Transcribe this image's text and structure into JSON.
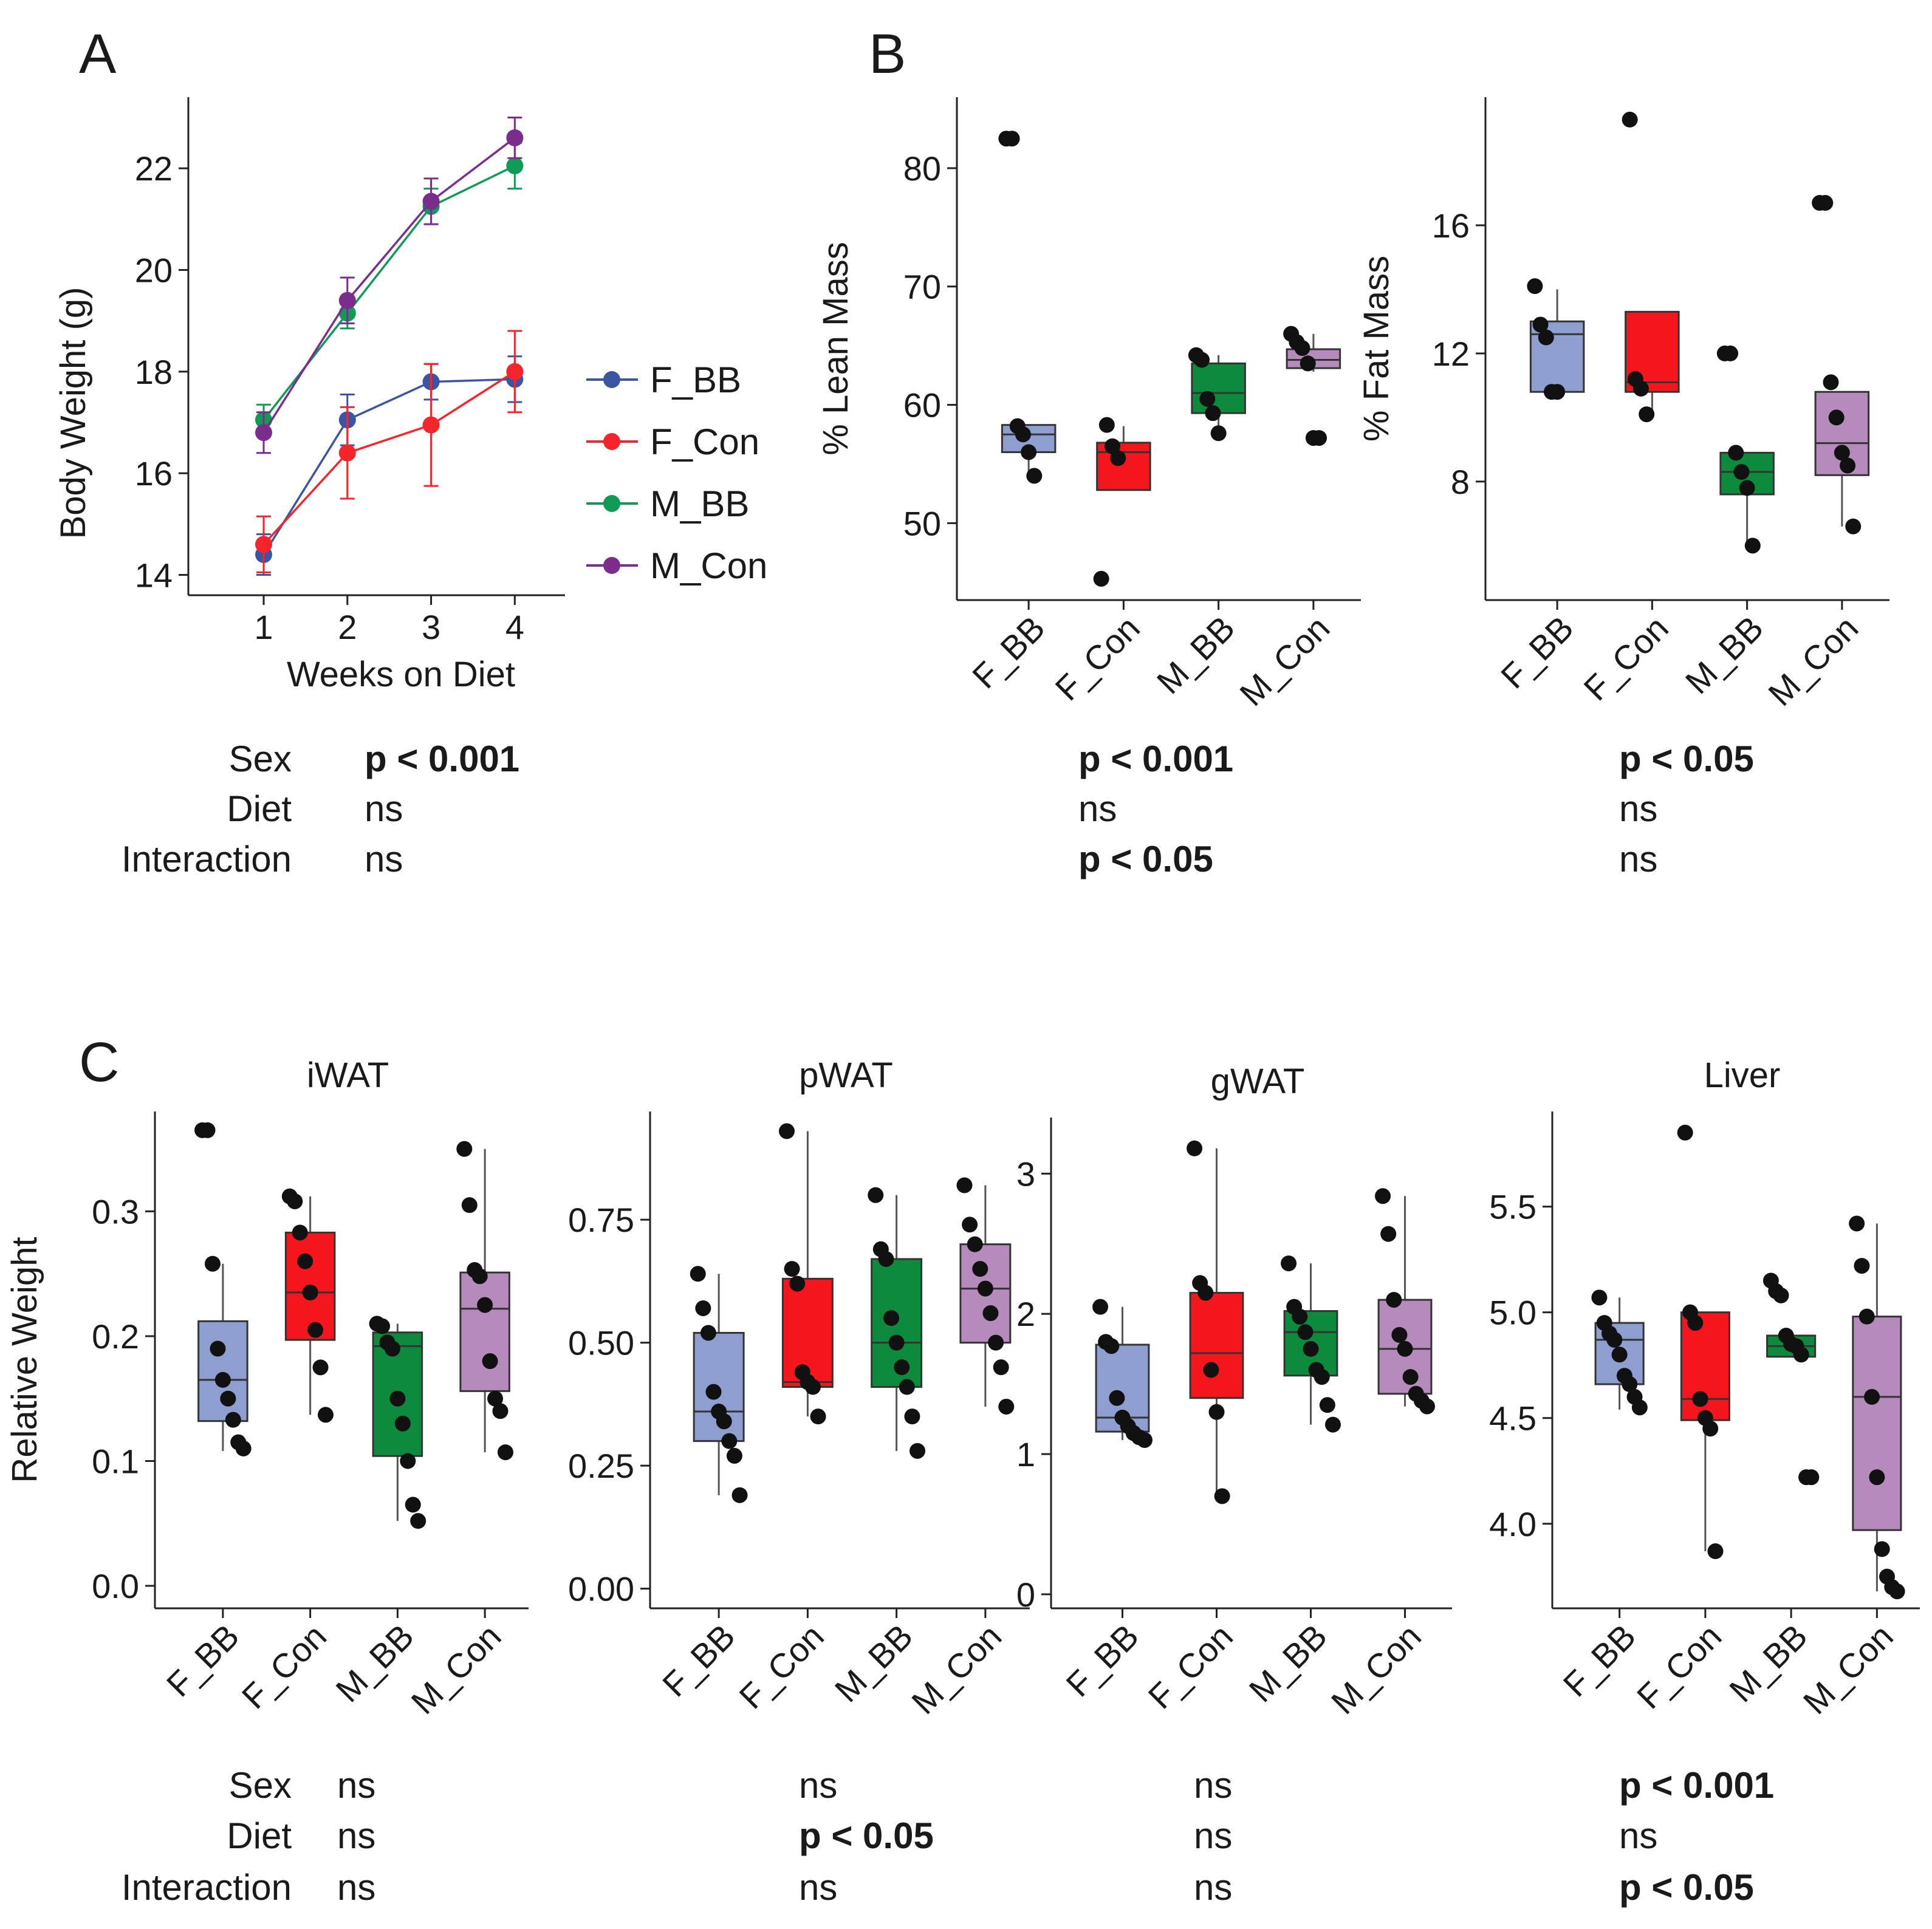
{
  "colors": {
    "F_BB": "#8e9fcf",
    "F_Con": "#f4161c",
    "M_BB": "#0d8a3c",
    "M_Con": "#b58bbb"
  },
  "line_colors": {
    "F_BB": "#3a55a4",
    "F_Con": "#f4262c",
    "M_BB": "#0f9a55",
    "M_Con": "#7b2d8e"
  },
  "stat_labels": {
    "sex": "Sex",
    "diet": "Diet",
    "interaction": "Interaction"
  },
  "chart_data": [
    {
      "id": "A",
      "panel_label": "A",
      "type": "line",
      "xlabel": "Weeks on Diet",
      "ylabel": "Body Weight (g)",
      "x": [
        1,
        2,
        3,
        4
      ],
      "xlim": [
        0.1,
        4.6
      ],
      "ylim": [
        13.6,
        23.4
      ],
      "xticks": [
        1,
        2,
        3,
        4
      ],
      "yticks": [
        14,
        16,
        18,
        20,
        22
      ],
      "series": [
        {
          "name": "F_BB",
          "values": [
            14.4,
            17.05,
            17.8,
            17.85
          ],
          "errors": [
            0.4,
            0.5,
            0.35,
            0.45
          ]
        },
        {
          "name": "F_Con",
          "values": [
            14.6,
            16.4,
            16.95,
            18.0
          ],
          "errors": [
            0.55,
            0.9,
            1.2,
            0.8
          ]
        },
        {
          "name": "M_BB",
          "values": [
            17.05,
            19.15,
            21.25,
            22.05
          ],
          "errors": [
            0.3,
            0.3,
            0.35,
            0.45
          ]
        },
        {
          "name": "M_Con",
          "values": [
            16.8,
            19.4,
            21.35,
            22.6
          ],
          "errors": [
            0.4,
            0.45,
            0.45,
            0.4
          ]
        }
      ],
      "legend": [
        "F_BB",
        "F_Con",
        "M_BB",
        "M_Con"
      ],
      "stats": {
        "sex": "p < 0.001",
        "diet": "ns",
        "interaction": "ns"
      },
      "stats_bold": {
        "sex": true,
        "diet": false,
        "interaction": false
      }
    },
    {
      "id": "B1",
      "panel_label": "B",
      "type": "box",
      "title": "",
      "ylabel": "% Lean Mass",
      "categories": [
        "F_BB",
        "F_Con",
        "M_BB",
        "M_Con"
      ],
      "ylim": [
        43.5,
        86
      ],
      "yticks": [
        50,
        60,
        70,
        80
      ],
      "boxes": [
        {
          "q1": 56.0,
          "median": 57.5,
          "q3": 58.3,
          "lo": 54.0,
          "hi": 58.3
        },
        {
          "q1": 52.8,
          "median": 56.0,
          "q3": 56.8,
          "lo": 52.8,
          "hi": 58.2
        },
        {
          "q1": 59.3,
          "median": 61.0,
          "q3": 63.5,
          "lo": 57.6,
          "hi": 64.2
        },
        {
          "q1": 63.1,
          "median": 63.8,
          "q3": 64.7,
          "lo": 62.8,
          "hi": 66.0
        }
      ],
      "points": [
        [
          82.5,
          82.5,
          58.2,
          57.5,
          56.0,
          54.0
        ],
        [
          45.3,
          58.3,
          56.5,
          55.5
        ],
        [
          64.2,
          63.8,
          60.5,
          59.3,
          57.6
        ],
        [
          66.0,
          65.3,
          64.8,
          63.5,
          57.2,
          57.2
        ]
      ],
      "stats": {
        "sex": "p < 0.001",
        "diet": "ns",
        "interaction": "p < 0.05"
      },
      "stats_bold": {
        "sex": true,
        "diet": false,
        "interaction": true
      }
    },
    {
      "id": "B2",
      "type": "box",
      "title": "",
      "ylabel": "% Fat Mass",
      "categories": [
        "F_BB",
        "F_Con",
        "M_BB",
        "M_Con"
      ],
      "ylim": [
        4.3,
        20.0
      ],
      "yticks": [
        8,
        12,
        16
      ],
      "boxes": [
        {
          "q1": 10.8,
          "median": 12.6,
          "q3": 13.0,
          "lo": 10.8,
          "hi": 14.0
        },
        {
          "q1": 10.8,
          "median": 11.1,
          "q3": 13.3,
          "lo": 10.1,
          "hi": 13.3
        },
        {
          "q1": 7.6,
          "median": 8.3,
          "q3": 8.9,
          "lo": 6.0,
          "hi": 8.9
        },
        {
          "q1": 8.2,
          "median": 9.2,
          "q3": 10.8,
          "lo": 6.6,
          "hi": 10.8
        }
      ],
      "points": [
        [
          14.1,
          12.9,
          12.5,
          10.8,
          10.8
        ],
        [
          19.3,
          11.2,
          10.9,
          10.1
        ],
        [
          12.0,
          12.0,
          8.9,
          8.3,
          7.8,
          6.0
        ],
        [
          16.7,
          16.7,
          11.1,
          10.0,
          8.9,
          8.5,
          6.6
        ]
      ],
      "stats": {
        "sex": "p < 0.05",
        "diet": "ns",
        "interaction": "ns"
      },
      "stats_bold": {
        "sex": true,
        "diet": false,
        "interaction": false
      }
    },
    {
      "id": "C1",
      "panel_label": "C",
      "type": "box",
      "title": "iWAT",
      "ylabel": "Relative Weight",
      "categories": [
        "F_BB",
        "F_Con",
        "M_BB",
        "M_Con"
      ],
      "ylim": [
        -0.018,
        0.38
      ],
      "yticks": [
        "0.0",
        "0.1",
        "0.2",
        "0.3"
      ],
      "boxes": [
        {
          "q1": 0.132,
          "median": 0.165,
          "q3": 0.212,
          "lo": 0.108,
          "hi": 0.258
        },
        {
          "q1": 0.197,
          "median": 0.235,
          "q3": 0.283,
          "lo": 0.137,
          "hi": 0.312
        },
        {
          "q1": 0.104,
          "median": 0.192,
          "q3": 0.203,
          "lo": 0.052,
          "hi": 0.21
        },
        {
          "q1": 0.156,
          "median": 0.222,
          "q3": 0.251,
          "lo": 0.107,
          "hi": 0.35
        }
      ],
      "points": [
        [
          0.365,
          0.365,
          0.258,
          0.19,
          0.165,
          0.15,
          0.133,
          0.115,
          0.11
        ],
        [
          0.312,
          0.308,
          0.283,
          0.26,
          0.235,
          0.205,
          0.175,
          0.137
        ],
        [
          0.21,
          0.208,
          0.195,
          0.19,
          0.15,
          0.13,
          0.1,
          0.065,
          0.052
        ],
        [
          0.35,
          0.305,
          0.253,
          0.248,
          0.225,
          0.18,
          0.15,
          0.14,
          0.107
        ]
      ],
      "stats": {
        "sex": "ns",
        "diet": "ns",
        "interaction": "ns"
      },
      "stats_bold": {
        "sex": false,
        "diet": false,
        "interaction": false
      }
    },
    {
      "id": "C2",
      "type": "box",
      "title": "pWAT",
      "ylabel": "",
      "categories": [
        "F_BB",
        "F_Con",
        "M_BB",
        "M_Con"
      ],
      "ylim": [
        -0.04,
        0.97
      ],
      "yticks": [
        "0.00",
        "0.25",
        "0.50",
        "0.75"
      ],
      "boxes": [
        {
          "q1": 0.3,
          "median": 0.36,
          "q3": 0.52,
          "lo": 0.19,
          "hi": 0.64
        },
        {
          "q1": 0.41,
          "median": 0.42,
          "q3": 0.63,
          "lo": 0.35,
          "hi": 0.93
        },
        {
          "q1": 0.41,
          "median": 0.5,
          "q3": 0.67,
          "lo": 0.28,
          "hi": 0.8
        },
        {
          "q1": 0.5,
          "median": 0.61,
          "q3": 0.7,
          "lo": 0.37,
          "hi": 0.82
        }
      ],
      "points": [
        [
          0.64,
          0.57,
          0.52,
          0.4,
          0.36,
          0.34,
          0.3,
          0.27,
          0.19
        ],
        [
          0.93,
          0.65,
          0.62,
          0.44,
          0.42,
          0.41,
          0.35
        ],
        [
          0.8,
          0.69,
          0.67,
          0.55,
          0.5,
          0.45,
          0.41,
          0.35,
          0.28
        ],
        [
          0.82,
          0.74,
          0.7,
          0.65,
          0.61,
          0.56,
          0.5,
          0.45,
          0.37
        ]
      ],
      "stats": {
        "sex": "ns",
        "diet": "p < 0.05",
        "interaction": "ns"
      },
      "stats_bold": {
        "sex": false,
        "diet": true,
        "interaction": false
      }
    },
    {
      "id": "C3",
      "type": "box",
      "title": "gWAT",
      "ylabel": "",
      "categories": [
        "F_BB",
        "F_Con",
        "M_BB",
        "M_Con"
      ],
      "ylim": [
        -0.1,
        3.4
      ],
      "yticks": [
        "0",
        "1",
        "2",
        "3"
      ],
      "boxes": [
        {
          "q1": 1.16,
          "median": 1.26,
          "q3": 1.78,
          "lo": 1.1,
          "hi": 2.05
        },
        {
          "q1": 1.4,
          "median": 1.72,
          "q3": 2.15,
          "lo": 0.7,
          "hi": 3.18
        },
        {
          "q1": 1.56,
          "median": 1.87,
          "q3": 2.02,
          "lo": 1.21,
          "hi": 2.36
        },
        {
          "q1": 1.43,
          "median": 1.75,
          "q3": 2.1,
          "lo": 1.34,
          "hi": 2.84
        }
      ],
      "points": [
        [
          2.05,
          1.8,
          1.77,
          1.4,
          1.26,
          1.2,
          1.15,
          1.12,
          1.1
        ],
        [
          3.18,
          2.22,
          2.15,
          1.6,
          1.3,
          0.7
        ],
        [
          2.36,
          2.05,
          1.98,
          1.87,
          1.75,
          1.6,
          1.55,
          1.35,
          1.21
        ],
        [
          2.84,
          2.57,
          2.1,
          1.85,
          1.75,
          1.55,
          1.43,
          1.38,
          1.34
        ]
      ],
      "stats": {
        "sex": "ns",
        "diet": "ns",
        "interaction": "ns"
      },
      "stats_bold": {
        "sex": false,
        "diet": false,
        "interaction": false
      }
    },
    {
      "id": "C4",
      "type": "box",
      "title": "Liver",
      "ylabel": "",
      "categories": [
        "F_BB",
        "F_Con",
        "M_BB",
        "M_Con"
      ],
      "ylim": [
        3.6,
        5.95
      ],
      "yticks": [
        "4.0",
        "4.5",
        "5.0",
        "5.5"
      ],
      "boxes": [
        {
          "q1": 4.66,
          "median": 4.87,
          "q3": 4.95,
          "lo": 4.54,
          "hi": 5.07
        },
        {
          "q1": 4.49,
          "median": 4.59,
          "q3": 5.0,
          "lo": 3.87,
          "hi": 5.0
        },
        {
          "q1": 4.79,
          "median": 4.84,
          "q3": 4.89,
          "lo": 4.79,
          "hi": 4.89
        },
        {
          "q1": 3.97,
          "median": 4.6,
          "q3": 4.98,
          "lo": 3.68,
          "hi": 5.42
        }
      ],
      "points": [
        [
          5.07,
          4.95,
          4.9,
          4.87,
          4.8,
          4.7,
          4.66,
          4.6,
          4.55
        ],
        [
          5.85,
          5.0,
          4.95,
          4.59,
          4.5,
          4.45,
          3.87
        ],
        [
          5.15,
          5.1,
          5.08,
          4.89,
          4.85,
          4.84,
          4.8,
          4.22,
          4.22
        ],
        [
          5.42,
          5.22,
          4.98,
          4.6,
          4.22,
          3.88,
          3.75,
          3.7,
          3.68
        ]
      ],
      "stats": {
        "sex": "p < 0.001",
        "diet": "ns",
        "interaction": "p < 0.05"
      },
      "stats_bold": {
        "sex": true,
        "diet": false,
        "interaction": true
      }
    }
  ]
}
